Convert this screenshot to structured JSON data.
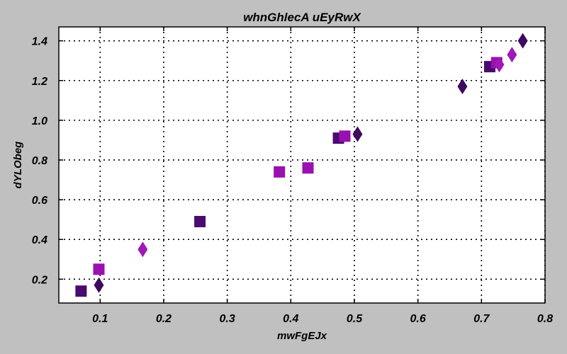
{
  "chart_data": {
    "type": "scatter",
    "title": "whnGhlecA uEyRwX",
    "xlabel": "mwFgEJx",
    "ylabel": "dYLObeg",
    "xlim": [
      0.035,
      0.8
    ],
    "ylim": [
      0.08,
      1.47
    ],
    "xticks": [
      0.1,
      0.2,
      0.3,
      0.4,
      0.5,
      0.6,
      0.7,
      0.8
    ],
    "yticks": [
      0.2,
      0.4,
      0.6,
      0.8,
      1.0,
      1.2,
      1.4
    ],
    "xtick_labels": [
      "0.1",
      "0.2",
      "0.3",
      "0.4",
      "0.5",
      "0.6",
      "0.7",
      "0.8"
    ],
    "ytick_labels": [
      "0.2",
      "0.4",
      "0.6",
      "0.8",
      "1.0",
      "1.2",
      "1.4"
    ],
    "grid": true,
    "legend": "none",
    "series": [
      {
        "marker": "square",
        "color": "#4a0a70",
        "points": [
          [
            0.07,
            0.14
          ],
          [
            0.257,
            0.49
          ],
          [
            0.475,
            0.91
          ],
          [
            0.713,
            1.27
          ]
        ]
      },
      {
        "marker": "square",
        "color": "#9a10b0",
        "points": [
          [
            0.098,
            0.25
          ],
          [
            0.382,
            0.74
          ],
          [
            0.427,
            0.76
          ],
          [
            0.485,
            0.92
          ],
          [
            0.724,
            1.29
          ]
        ]
      },
      {
        "marker": "diamond",
        "color": "#3d0a5e",
        "points": [
          [
            0.098,
            0.17
          ],
          [
            0.505,
            0.93
          ],
          [
            0.67,
            1.17
          ],
          [
            0.765,
            1.4
          ]
        ]
      },
      {
        "marker": "diamond",
        "color": "#a018b8",
        "points": [
          [
            0.167,
            0.35
          ],
          [
            0.728,
            1.28
          ],
          [
            0.748,
            1.33
          ]
        ]
      }
    ]
  }
}
